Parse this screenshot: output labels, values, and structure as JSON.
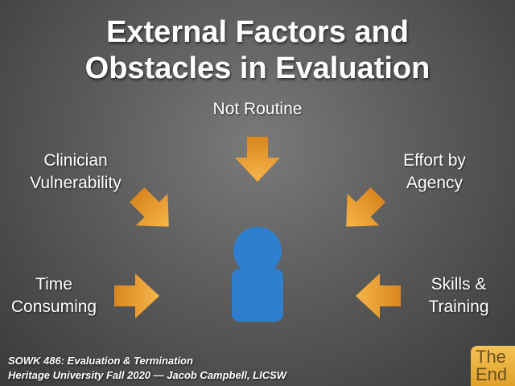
{
  "title_line1": "External Factors and",
  "title_line2": "Obstacles in Evaluation",
  "labels": {
    "top": "Not Routine",
    "top_left_line1": "Clinician",
    "top_left_line2": "Vulnerability",
    "top_right_line1": "Effort by",
    "top_right_line2": "Agency",
    "bottom_left_line1": "Time",
    "bottom_left_line2": "Consuming",
    "bottom_right_line1": "Skills &",
    "bottom_right_line2": "Training"
  },
  "footer": {
    "line1": "SOWK 486: Evaluation & Termination",
    "line2": "Heritage University Fall 2020 — Jacob Campbell, LICSW"
  },
  "badge": {
    "line1": "The",
    "line2": "End"
  },
  "colors": {
    "arrow": "#f0a030",
    "person": "#2f7fcf",
    "badge": "#e9ab35"
  },
  "icons": {
    "arrow": "arrow-icon",
    "person": "person-icon"
  }
}
